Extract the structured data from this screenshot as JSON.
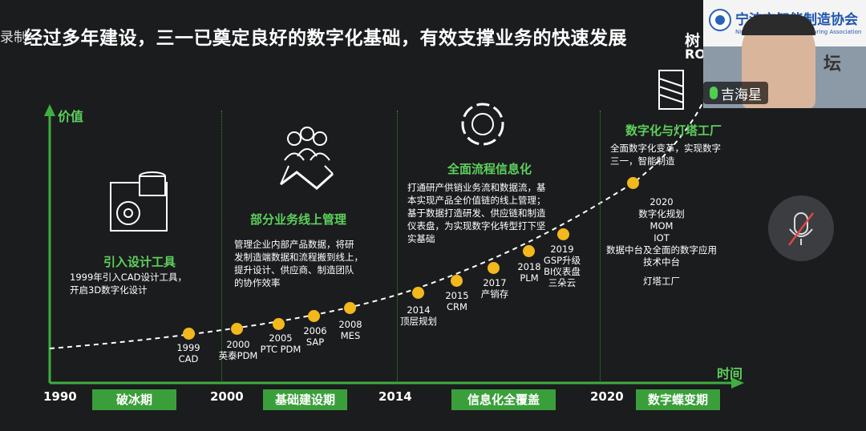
{
  "slide": {
    "rec_label": "录制",
    "title": "经过多年建设，三一已奠定良好的数字化基础，有效支撑业务的快速发展",
    "y_axis_label": "价值",
    "x_axis_label": "时间",
    "brand_line1": "树",
    "brand_line2": "RO",
    "years": [
      "1990",
      "2000",
      "2014",
      "2020"
    ],
    "phases": [
      "破冰期",
      "基础建设期",
      "信息化全覆盖",
      "数字蝶变期"
    ],
    "sections": [
      {
        "title": "引入设计工具",
        "lines": [
          "1999年引入CAD设计工具，",
          "开启3D数字化设计"
        ]
      },
      {
        "title": "部分业务线上管理",
        "lines": [
          "管理企业内部产品数据，将研",
          "发制造端数据和流程搬到线上，",
          "提升设计、供应商、制造团队",
          "的协作效率"
        ]
      },
      {
        "title": "全面流程信息化",
        "lines": [
          "打通研产供销业务流和数据流，基",
          "本实现产品全价值链的线上管理；",
          "基于数据打造研发、供应链和制造",
          "仪表盘，为实现数字化转型打下坚",
          "实基础"
        ]
      },
      {
        "title": "数字化与灯塔工厂",
        "lines": [
          "全面数字化变革，实现数字",
          "三一，智能制造"
        ]
      }
    ],
    "milestones": [
      {
        "lines": [
          "1999",
          "CAD"
        ]
      },
      {
        "lines": [
          "2000",
          "英泰PDM"
        ]
      },
      {
        "lines": [
          "2005",
          "PTC PDM"
        ]
      },
      {
        "lines": [
          "2006",
          "SAP"
        ]
      },
      {
        "lines": [
          "2008",
          "MES"
        ]
      },
      {
        "lines": [
          "2014",
          "顶层规划"
        ]
      },
      {
        "lines": [
          "2015",
          "CRM"
        ]
      },
      {
        "lines": [
          "2017",
          "产销存"
        ]
      },
      {
        "lines": [
          "2018",
          "PLM"
        ]
      },
      {
        "lines": [
          "2019",
          "GSP升级",
          "BI仪表盘",
          "三朵云"
        ]
      },
      {
        "lines": [
          "2020",
          "数字化规划",
          "MOM",
          "IOT",
          "数据中台及全面的数字应用",
          "技术中台",
          "",
          "灯塔工厂"
        ]
      }
    ]
  },
  "webcam": {
    "participant_name": "吉海星",
    "logo_text": "宁波市智能制造协会",
    "logo_sub": "Ningbo Intelligent Manufacturing Association",
    "side_text": "坛"
  },
  "colors": {
    "accent_green": "#5dd05b",
    "phase_green": "#3a9f3a",
    "dot_yellow": "#f2b81c",
    "background": "#1b1c1e"
  }
}
